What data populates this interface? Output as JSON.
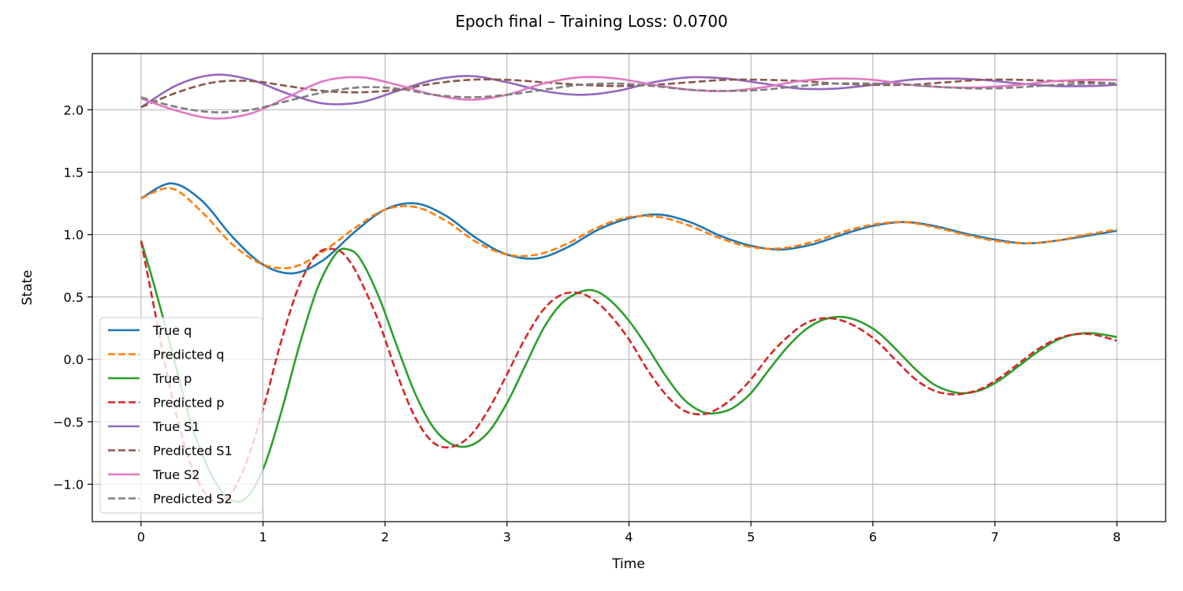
{
  "chart_data": {
    "type": "line",
    "title": "Epoch final – Training Loss: 0.0700",
    "xlabel": "Time",
    "ylabel": "State",
    "xlim": [
      -0.4,
      8.4
    ],
    "ylim": [
      -1.3,
      2.45
    ],
    "xticks": [
      0,
      1,
      2,
      3,
      4,
      5,
      6,
      7,
      8
    ],
    "xtick_labels": [
      "0",
      "1",
      "2",
      "3",
      "4",
      "5",
      "6",
      "7",
      "8"
    ],
    "yticks": [
      -1.0,
      -0.5,
      0.0,
      0.5,
      1.0,
      1.5,
      2.0
    ],
    "ytick_labels": [
      "−1.0",
      "−0.5",
      "0.0",
      "0.5",
      "1.0",
      "1.5",
      "2.0"
    ],
    "grid": true,
    "legend_position": "lower-left",
    "series": [
      {
        "name": "True q",
        "color": "#1f77b4",
        "style": "solid",
        "x": [
          0,
          0.25,
          0.5,
          0.75,
          1.0,
          1.25,
          1.5,
          1.75,
          2.0,
          2.25,
          2.5,
          2.75,
          3.0,
          3.25,
          3.5,
          3.75,
          4.0,
          4.25,
          4.5,
          4.75,
          5.0,
          5.25,
          5.5,
          5.75,
          6.0,
          6.25,
          6.5,
          6.75,
          7.0,
          7.25,
          7.5,
          7.75,
          8.0
        ],
        "y": [
          1.29,
          1.41,
          1.27,
          0.98,
          0.76,
          0.69,
          0.8,
          1.02,
          1.2,
          1.25,
          1.15,
          0.97,
          0.84,
          0.81,
          0.9,
          1.04,
          1.13,
          1.16,
          1.1,
          0.99,
          0.91,
          0.88,
          0.92,
          1.0,
          1.07,
          1.1,
          1.07,
          1.01,
          0.96,
          0.93,
          0.95,
          0.99,
          1.03
        ]
      },
      {
        "name": "Predicted q",
        "color": "#ff7f0e",
        "style": "dashed",
        "x": [
          0,
          0.25,
          0.5,
          0.75,
          1.0,
          1.25,
          1.5,
          1.75,
          2.0,
          2.25,
          2.5,
          2.75,
          3.0,
          3.25,
          3.5,
          3.75,
          4.0,
          4.25,
          4.5,
          4.75,
          5.0,
          5.25,
          5.5,
          5.75,
          6.0,
          6.25,
          6.5,
          6.75,
          7.0,
          7.25,
          7.5,
          7.75,
          8.0
        ],
        "y": [
          1.29,
          1.37,
          1.18,
          0.92,
          0.76,
          0.74,
          0.87,
          1.05,
          1.2,
          1.22,
          1.11,
          0.94,
          0.84,
          0.84,
          0.93,
          1.06,
          1.14,
          1.14,
          1.07,
          0.97,
          0.9,
          0.89,
          0.94,
          1.02,
          1.08,
          1.1,
          1.06,
          1.0,
          0.95,
          0.93,
          0.95,
          1.0,
          1.04
        ]
      },
      {
        "name": "True p",
        "color": "#2ca02c",
        "style": "solid",
        "x": [
          0,
          0.1,
          0.25,
          0.4,
          0.55,
          0.7,
          0.85,
          1.0,
          1.15,
          1.3,
          1.45,
          1.6,
          1.7,
          1.8,
          1.95,
          2.1,
          2.25,
          2.4,
          2.55,
          2.7,
          2.85,
          3.0,
          3.15,
          3.3,
          3.45,
          3.6,
          3.72,
          3.85,
          4.0,
          4.15,
          4.3,
          4.45,
          4.6,
          4.72,
          4.85,
          5.0,
          5.15,
          5.3,
          5.45,
          5.6,
          5.75,
          5.9,
          6.05,
          6.2,
          6.35,
          6.5,
          6.65,
          6.77,
          6.9,
          7.05,
          7.2,
          7.35,
          7.5,
          7.65,
          7.8,
          8.0
        ],
        "y": [
          0.95,
          0.62,
          0.08,
          -0.48,
          -0.87,
          -1.1,
          -1.12,
          -0.88,
          -0.42,
          0.12,
          0.58,
          0.85,
          0.88,
          0.8,
          0.5,
          0.1,
          -0.28,
          -0.55,
          -0.68,
          -0.69,
          -0.58,
          -0.35,
          -0.05,
          0.25,
          0.45,
          0.54,
          0.55,
          0.47,
          0.31,
          0.1,
          -0.13,
          -0.32,
          -0.42,
          -0.43,
          -0.39,
          -0.27,
          -0.08,
          0.1,
          0.24,
          0.32,
          0.34,
          0.3,
          0.21,
          0.07,
          -0.08,
          -0.2,
          -0.26,
          -0.27,
          -0.24,
          -0.16,
          -0.05,
          0.06,
          0.15,
          0.2,
          0.21,
          0.18
        ]
      },
      {
        "name": "Predicted p",
        "color": "#d62728",
        "style": "dashed",
        "x": [
          0,
          0.1,
          0.25,
          0.4,
          0.55,
          0.7,
          0.85,
          1.0,
          1.15,
          1.3,
          1.45,
          1.6,
          1.7,
          1.8,
          1.95,
          2.1,
          2.25,
          2.4,
          2.55,
          2.7,
          2.85,
          3.0,
          3.15,
          3.3,
          3.45,
          3.6,
          3.72,
          3.85,
          4.0,
          4.15,
          4.3,
          4.45,
          4.6,
          4.72,
          4.85,
          5.0,
          5.15,
          5.3,
          5.45,
          5.6,
          5.75,
          5.9,
          6.05,
          6.2,
          6.35,
          6.5,
          6.65,
          6.77,
          6.9,
          7.05,
          7.2,
          7.35,
          7.5,
          7.65,
          7.8,
          8.0
        ],
        "y": [
          0.95,
          0.45,
          -0.28,
          -0.82,
          -1.1,
          -1.12,
          -0.86,
          -0.4,
          0.15,
          0.6,
          0.85,
          0.88,
          0.8,
          0.63,
          0.3,
          -0.12,
          -0.47,
          -0.67,
          -0.7,
          -0.61,
          -0.4,
          -0.12,
          0.17,
          0.4,
          0.52,
          0.53,
          0.47,
          0.35,
          0.16,
          -0.08,
          -0.28,
          -0.41,
          -0.44,
          -0.4,
          -0.31,
          -0.16,
          0.03,
          0.18,
          0.29,
          0.33,
          0.31,
          0.24,
          0.13,
          -0.02,
          -0.16,
          -0.25,
          -0.28,
          -0.27,
          -0.23,
          -0.14,
          -0.03,
          0.08,
          0.16,
          0.2,
          0.2,
          0.15
        ]
      },
      {
        "name": "True S1",
        "color": "#9467bd",
        "style": "solid",
        "x": [
          0,
          0.3,
          0.6,
          0.9,
          1.2,
          1.5,
          1.8,
          2.1,
          2.4,
          2.7,
          3.0,
          3.3,
          3.6,
          3.9,
          4.2,
          4.5,
          4.8,
          5.1,
          5.4,
          5.7,
          6.0,
          6.3,
          6.6,
          6.9,
          7.2,
          7.5,
          7.8,
          8.0
        ],
        "y": [
          2.02,
          2.2,
          2.28,
          2.24,
          2.13,
          2.05,
          2.06,
          2.15,
          2.24,
          2.27,
          2.22,
          2.15,
          2.12,
          2.15,
          2.22,
          2.26,
          2.25,
          2.21,
          2.17,
          2.17,
          2.2,
          2.24,
          2.25,
          2.24,
          2.21,
          2.19,
          2.19,
          2.2
        ]
      },
      {
        "name": "Predicted S1",
        "color": "#8c564b",
        "style": "dashed",
        "x": [
          0,
          0.3,
          0.6,
          0.9,
          1.2,
          1.5,
          1.8,
          2.1,
          2.4,
          2.7,
          3.0,
          3.3,
          3.6,
          3.9,
          4.2,
          4.5,
          4.8,
          5.1,
          5.4,
          5.7,
          6.0,
          6.3,
          6.6,
          6.9,
          7.2,
          7.5,
          7.8,
          8.0
        ],
        "y": [
          2.02,
          2.14,
          2.22,
          2.23,
          2.19,
          2.15,
          2.14,
          2.16,
          2.21,
          2.24,
          2.24,
          2.22,
          2.2,
          2.19,
          2.2,
          2.22,
          2.24,
          2.24,
          2.23,
          2.21,
          2.2,
          2.2,
          2.22,
          2.24,
          2.24,
          2.23,
          2.22,
          2.21
        ]
      },
      {
        "name": "True S2",
        "color": "#e377c2",
        "style": "solid",
        "x": [
          0,
          0.3,
          0.6,
          0.9,
          1.2,
          1.5,
          1.8,
          2.1,
          2.4,
          2.7,
          3.0,
          3.3,
          3.6,
          3.9,
          4.2,
          4.5,
          4.8,
          5.1,
          5.4,
          5.7,
          6.0,
          6.3,
          6.6,
          6.9,
          7.2,
          7.5,
          7.8,
          8.0
        ],
        "y": [
          2.09,
          1.99,
          1.93,
          1.97,
          2.1,
          2.23,
          2.26,
          2.2,
          2.12,
          2.08,
          2.12,
          2.21,
          2.26,
          2.25,
          2.2,
          2.16,
          2.15,
          2.18,
          2.23,
          2.25,
          2.24,
          2.2,
          2.18,
          2.18,
          2.2,
          2.23,
          2.24,
          2.24
        ]
      },
      {
        "name": "Predicted S2",
        "color": "#7f7f7f",
        "style": "dashed",
        "x": [
          0,
          0.3,
          0.6,
          0.9,
          1.2,
          1.5,
          1.8,
          2.1,
          2.4,
          2.7,
          3.0,
          3.3,
          3.6,
          3.9,
          4.2,
          4.5,
          4.8,
          5.1,
          5.4,
          5.7,
          6.0,
          6.3,
          6.6,
          6.9,
          7.2,
          7.5,
          7.8,
          8.0
        ],
        "y": [
          2.1,
          2.02,
          1.98,
          2.0,
          2.07,
          2.14,
          2.18,
          2.17,
          2.12,
          2.1,
          2.12,
          2.16,
          2.2,
          2.21,
          2.19,
          2.16,
          2.15,
          2.16,
          2.19,
          2.21,
          2.21,
          2.2,
          2.18,
          2.17,
          2.18,
          2.2,
          2.21,
          2.21
        ]
      }
    ]
  }
}
